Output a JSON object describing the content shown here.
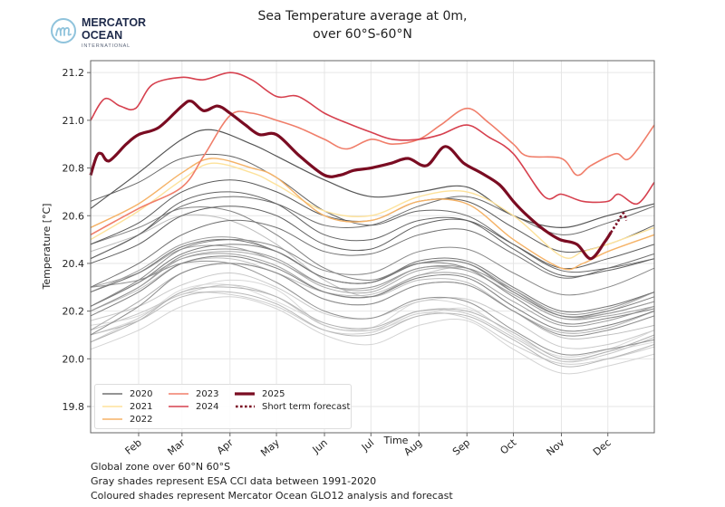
{
  "logo": {
    "line1": "MERCATOR",
    "line2": "OCEAN",
    "line3": "INTERNATIONAL",
    "color": "#1e2a4a",
    "accent": "#8fc3dc"
  },
  "title": {
    "line1": "Sea Temperature average at 0m,",
    "line2": "over 60°S-60°N"
  },
  "footer": [
    "Global zone over 60°N 60°S",
    "Gray shades represent ESA CCI data between 1991-2020",
    "Coloured shades represent Mercator Ocean GLO12 analysis and forecast"
  ],
  "chart_data": {
    "type": "line",
    "title": "Sea Temperature average at 0m, over 60°S-60°N",
    "xlabel": "Time",
    "ylabel": "Temperature [°C]",
    "ylim": [
      19.69,
      21.25
    ],
    "yticks": [
      19.8,
      20.0,
      20.2,
      20.4,
      20.6,
      20.8,
      21.0,
      21.2
    ],
    "xticks": [
      {
        "label": "Feb",
        "date": "02-01"
      },
      {
        "label": "Mar",
        "date": "03-01"
      },
      {
        "label": "Apr",
        "date": "04-01"
      },
      {
        "label": "May",
        "date": "05-01"
      },
      {
        "label": "Jun",
        "date": "06-01"
      },
      {
        "label": "Jul",
        "date": "07-01"
      },
      {
        "label": "Aug",
        "date": "08-01"
      },
      {
        "label": "Sep",
        "date": "09-01"
      },
      {
        "label": "Oct",
        "date": "10-01"
      },
      {
        "label": "Nov",
        "date": "11-01"
      },
      {
        "label": "Dec",
        "date": "12-01"
      }
    ],
    "xlim": [
      "01-01",
      "12-31"
    ],
    "grid": true,
    "legend_position": "bottom-left",
    "gray_series": {
      "dates": [
        "01-01",
        "02-01",
        "03-01",
        "04-01",
        "05-01",
        "06-01",
        "07-01",
        "08-01",
        "09-01",
        "10-01",
        "11-01",
        "12-01",
        "12-31"
      ],
      "years": [
        1991,
        1992,
        1993,
        1994,
        1995,
        1996,
        1997,
        1998,
        1999,
        2000,
        2001,
        2002,
        2003,
        2004,
        2005,
        2006,
        2007,
        2008,
        2009,
        2010,
        2011,
        2012,
        2013,
        2014,
        2015,
        2016,
        2017,
        2018,
        2019
      ],
      "values": [
        [
          20.1,
          20.17,
          20.29,
          20.31,
          20.24,
          20.15,
          20.12,
          20.18,
          20.21,
          20.1,
          19.99,
          20.03,
          20.07
        ],
        [
          20.14,
          20.18,
          20.28,
          20.33,
          20.29,
          20.14,
          20.13,
          20.24,
          20.22,
          20.1,
          20.01,
          20.04,
          20.12
        ],
        [
          20.04,
          20.12,
          20.22,
          20.26,
          20.21,
          20.1,
          20.06,
          20.14,
          20.16,
          20.04,
          19.94,
          19.97,
          20.02
        ],
        [
          20.07,
          20.17,
          20.27,
          20.27,
          20.22,
          20.12,
          20.11,
          20.19,
          20.17,
          20.06,
          19.98,
          20.0,
          20.05
        ],
        [
          20.16,
          20.22,
          20.31,
          20.36,
          20.3,
          20.19,
          20.17,
          20.24,
          20.25,
          20.16,
          20.05,
          20.06,
          20.12
        ],
        [
          20.12,
          20.19,
          20.27,
          20.31,
          20.26,
          20.14,
          20.12,
          20.2,
          20.19,
          20.09,
          19.99,
          20.02,
          20.09
        ],
        [
          20.2,
          20.29,
          20.4,
          20.42,
          20.36,
          20.28,
          20.27,
          20.35,
          20.38,
          20.28,
          20.18,
          20.2,
          20.28
        ],
        [
          20.45,
          20.52,
          20.6,
          20.58,
          20.48,
          20.33,
          20.26,
          20.33,
          20.32,
          20.2,
          20.09,
          20.1,
          20.14
        ],
        [
          20.1,
          20.16,
          20.26,
          20.28,
          20.23,
          20.12,
          20.1,
          20.18,
          20.18,
          20.08,
          19.97,
          20.0,
          20.06
        ],
        [
          20.07,
          20.16,
          20.28,
          20.3,
          20.26,
          20.15,
          20.13,
          20.2,
          20.2,
          20.11,
          20.0,
          20.03,
          20.1
        ],
        [
          20.12,
          20.24,
          20.36,
          20.4,
          20.36,
          20.25,
          20.23,
          20.31,
          20.31,
          20.2,
          20.11,
          20.13,
          20.2
        ],
        [
          20.2,
          20.3,
          20.42,
          20.45,
          20.41,
          20.3,
          20.28,
          20.37,
          20.37,
          20.27,
          20.17,
          20.19,
          20.24
        ],
        [
          20.3,
          20.36,
          20.46,
          20.47,
          20.41,
          20.31,
          20.29,
          20.38,
          20.37,
          20.27,
          20.17,
          20.18,
          20.22
        ],
        [
          20.22,
          20.32,
          20.42,
          20.44,
          20.39,
          20.28,
          20.26,
          20.35,
          20.35,
          20.24,
          20.14,
          20.16,
          20.22
        ],
        [
          20.28,
          20.37,
          20.48,
          20.51,
          20.45,
          20.34,
          20.32,
          20.4,
          20.4,
          20.29,
          20.18,
          20.19,
          20.24
        ],
        [
          20.2,
          20.3,
          20.43,
          20.46,
          20.42,
          20.31,
          20.3,
          20.38,
          20.38,
          20.29,
          20.19,
          20.21,
          20.28
        ],
        [
          20.3,
          20.33,
          20.4,
          20.4,
          20.32,
          20.2,
          20.17,
          20.25,
          20.24,
          20.12,
          20.02,
          20.04,
          20.08
        ],
        [
          20.1,
          20.22,
          20.36,
          20.4,
          20.36,
          20.25,
          20.23,
          20.31,
          20.31,
          20.2,
          20.1,
          20.12,
          20.18
        ],
        [
          20.22,
          20.33,
          20.46,
          20.5,
          20.47,
          20.37,
          20.36,
          20.45,
          20.46,
          20.36,
          20.27,
          20.3,
          20.38
        ],
        [
          20.48,
          20.55,
          20.63,
          20.62,
          20.52,
          20.38,
          20.33,
          20.4,
          20.38,
          20.26,
          20.15,
          20.17,
          20.21
        ],
        [
          20.18,
          20.28,
          20.4,
          20.43,
          20.38,
          20.28,
          20.26,
          20.34,
          20.34,
          20.22,
          20.12,
          20.14,
          20.2
        ],
        [
          20.22,
          20.32,
          20.44,
          20.48,
          20.45,
          20.34,
          20.32,
          20.4,
          20.4,
          20.28,
          20.18,
          20.2,
          20.26
        ],
        [
          20.28,
          20.36,
          20.47,
          20.5,
          20.45,
          20.34,
          20.32,
          20.41,
          20.41,
          20.3,
          20.2,
          20.22,
          20.28
        ],
        [
          20.3,
          20.4,
          20.52,
          20.58,
          20.55,
          20.45,
          20.44,
          20.52,
          20.54,
          20.44,
          20.34,
          20.38,
          20.44
        ],
        [
          20.42,
          20.52,
          20.64,
          20.68,
          20.65,
          20.56,
          20.56,
          20.64,
          20.68,
          20.6,
          20.52,
          20.57,
          20.64
        ],
        [
          20.66,
          20.74,
          20.84,
          20.85,
          20.76,
          20.62,
          20.56,
          20.62,
          20.6,
          20.48,
          20.37,
          20.38,
          20.42
        ],
        [
          20.42,
          20.52,
          20.66,
          20.7,
          20.65,
          20.52,
          20.5,
          20.58,
          20.58,
          20.46,
          20.35,
          20.37,
          20.42
        ],
        [
          20.4,
          20.48,
          20.6,
          20.64,
          20.6,
          20.48,
          20.46,
          20.56,
          20.58,
          20.48,
          20.38,
          20.42,
          20.48
        ],
        [
          20.48,
          20.57,
          20.7,
          20.75,
          20.7,
          20.6,
          20.58,
          20.66,
          20.66,
          20.55,
          20.45,
          20.48,
          20.56
        ]
      ]
    },
    "series": [
      {
        "name": "2020",
        "color": "#555555",
        "width": 1.2,
        "points": [
          [
            "01-01",
            20.63
          ],
          [
            "02-01",
            20.78
          ],
          [
            "03-01",
            20.92
          ],
          [
            "03-20",
            20.96
          ],
          [
            "04-15",
            20.9
          ],
          [
            "05-01",
            20.85
          ],
          [
            "06-01",
            20.75
          ],
          [
            "07-01",
            20.68
          ],
          [
            "08-01",
            20.7
          ],
          [
            "09-01",
            20.72
          ],
          [
            "10-01",
            20.6
          ],
          [
            "11-01",
            20.55
          ],
          [
            "12-01",
            20.6
          ],
          [
            "12-31",
            20.65
          ]
        ]
      },
      {
        "name": "2021",
        "color": "#fde29b",
        "width": 1.4,
        "points": [
          [
            "01-01",
            20.5
          ],
          [
            "02-01",
            20.62
          ],
          [
            "03-01",
            20.75
          ],
          [
            "03-20",
            20.82
          ],
          [
            "04-15",
            20.78
          ],
          [
            "05-01",
            20.73
          ],
          [
            "06-01",
            20.62
          ],
          [
            "07-01",
            20.6
          ],
          [
            "08-01",
            20.68
          ],
          [
            "09-01",
            20.7
          ],
          [
            "10-01",
            20.6
          ],
          [
            "11-01",
            20.43
          ],
          [
            "11-15",
            20.45
          ],
          [
            "12-01",
            20.48
          ],
          [
            "12-31",
            20.55
          ]
        ]
      },
      {
        "name": "2022",
        "color": "#f5b266",
        "width": 1.4,
        "points": [
          [
            "01-01",
            20.55
          ],
          [
            "02-01",
            20.65
          ],
          [
            "03-01",
            20.78
          ],
          [
            "03-20",
            20.84
          ],
          [
            "04-15",
            20.8
          ],
          [
            "05-01",
            20.76
          ],
          [
            "06-01",
            20.6
          ],
          [
            "07-01",
            20.58
          ],
          [
            "08-01",
            20.66
          ],
          [
            "09-01",
            20.65
          ],
          [
            "10-01",
            20.5
          ],
          [
            "11-01",
            20.38
          ],
          [
            "11-15",
            20.4
          ],
          [
            "12-01",
            20.45
          ],
          [
            "12-31",
            20.52
          ]
        ]
      },
      {
        "name": "2023",
        "color": "#f07e6a",
        "width": 1.6,
        "points": [
          [
            "01-01",
            20.52
          ],
          [
            "02-01",
            20.63
          ],
          [
            "03-01",
            20.72
          ],
          [
            "03-15",
            20.85
          ],
          [
            "04-01",
            21.02
          ],
          [
            "04-15",
            21.03
          ],
          [
            "05-01",
            21.0
          ],
          [
            "05-15",
            20.97
          ],
          [
            "06-01",
            20.92
          ],
          [
            "06-15",
            20.88
          ],
          [
            "07-01",
            20.92
          ],
          [
            "07-15",
            20.9
          ],
          [
            "08-01",
            20.92
          ],
          [
            "08-15",
            20.98
          ],
          [
            "09-01",
            21.05
          ],
          [
            "09-15",
            20.99
          ],
          [
            "10-01",
            20.9
          ],
          [
            "10-10",
            20.85
          ],
          [
            "11-01",
            20.84
          ],
          [
            "11-11",
            20.77
          ],
          [
            "11-20",
            20.81
          ],
          [
            "12-06",
            20.86
          ],
          [
            "12-15",
            20.84
          ],
          [
            "12-31",
            20.98
          ]
        ]
      },
      {
        "name": "2024",
        "color": "#d6404e",
        "width": 1.6,
        "points": [
          [
            "01-01",
            21.0
          ],
          [
            "01-10",
            21.09
          ],
          [
            "01-20",
            21.06
          ],
          [
            "01-30",
            21.05
          ],
          [
            "02-10",
            21.15
          ],
          [
            "03-01",
            21.18
          ],
          [
            "03-15",
            21.17
          ],
          [
            "04-01",
            21.2
          ],
          [
            "04-15",
            21.17
          ],
          [
            "05-01",
            21.1
          ],
          [
            "05-15",
            21.1
          ],
          [
            "06-01",
            21.03
          ],
          [
            "06-15",
            20.99
          ],
          [
            "07-01",
            20.95
          ],
          [
            "07-15",
            20.92
          ],
          [
            "08-01",
            20.92
          ],
          [
            "08-15",
            20.94
          ],
          [
            "09-01",
            20.98
          ],
          [
            "09-15",
            20.93
          ],
          [
            "10-01",
            20.86
          ],
          [
            "10-21",
            20.68
          ],
          [
            "11-01",
            20.69
          ],
          [
            "11-15",
            20.66
          ],
          [
            "12-01",
            20.66
          ],
          [
            "12-08",
            20.69
          ],
          [
            "12-20",
            20.65
          ],
          [
            "12-31",
            20.74
          ]
        ]
      },
      {
        "name": "2025",
        "color": "#7a0c22",
        "width": 3.2,
        "points": [
          [
            "01-01",
            20.77
          ],
          [
            "01-05",
            20.85
          ],
          [
            "01-08",
            20.86
          ],
          [
            "01-13",
            20.83
          ],
          [
            "01-24",
            20.9
          ],
          [
            "02-01",
            20.94
          ],
          [
            "02-14",
            20.97
          ],
          [
            "03-01",
            21.06
          ],
          [
            "03-07",
            21.08
          ],
          [
            "03-15",
            21.04
          ],
          [
            "03-24",
            21.06
          ],
          [
            "04-01",
            21.03
          ],
          [
            "04-11",
            20.98
          ],
          [
            "04-20",
            20.94
          ],
          [
            "05-01",
            20.94
          ],
          [
            "05-16",
            20.85
          ],
          [
            "06-01",
            20.77
          ],
          [
            "06-11",
            20.77
          ],
          [
            "06-20",
            20.79
          ],
          [
            "07-01",
            20.8
          ],
          [
            "07-14",
            20.82
          ],
          [
            "07-25",
            20.84
          ],
          [
            "08-06",
            20.81
          ],
          [
            "08-18",
            20.89
          ],
          [
            "08-30",
            20.82
          ],
          [
            "09-10",
            20.78
          ],
          [
            "09-22",
            20.73
          ],
          [
            "10-01",
            20.66
          ],
          [
            "10-10",
            20.6
          ],
          [
            "10-21",
            20.54
          ],
          [
            "10-31",
            20.5
          ],
          [
            "11-11",
            20.48
          ],
          [
            "11-20",
            20.42
          ],
          [
            "11-29",
            20.49
          ],
          [
            "12-03",
            20.53
          ]
        ]
      },
      {
        "name": "Short term forecast",
        "color": "#7a0c22",
        "width": 2.6,
        "dashed": true,
        "points": [
          [
            "12-03",
            20.53
          ],
          [
            "12-07",
            20.57
          ],
          [
            "12-11",
            20.61
          ],
          [
            "12-13",
            20.58
          ]
        ]
      }
    ]
  }
}
